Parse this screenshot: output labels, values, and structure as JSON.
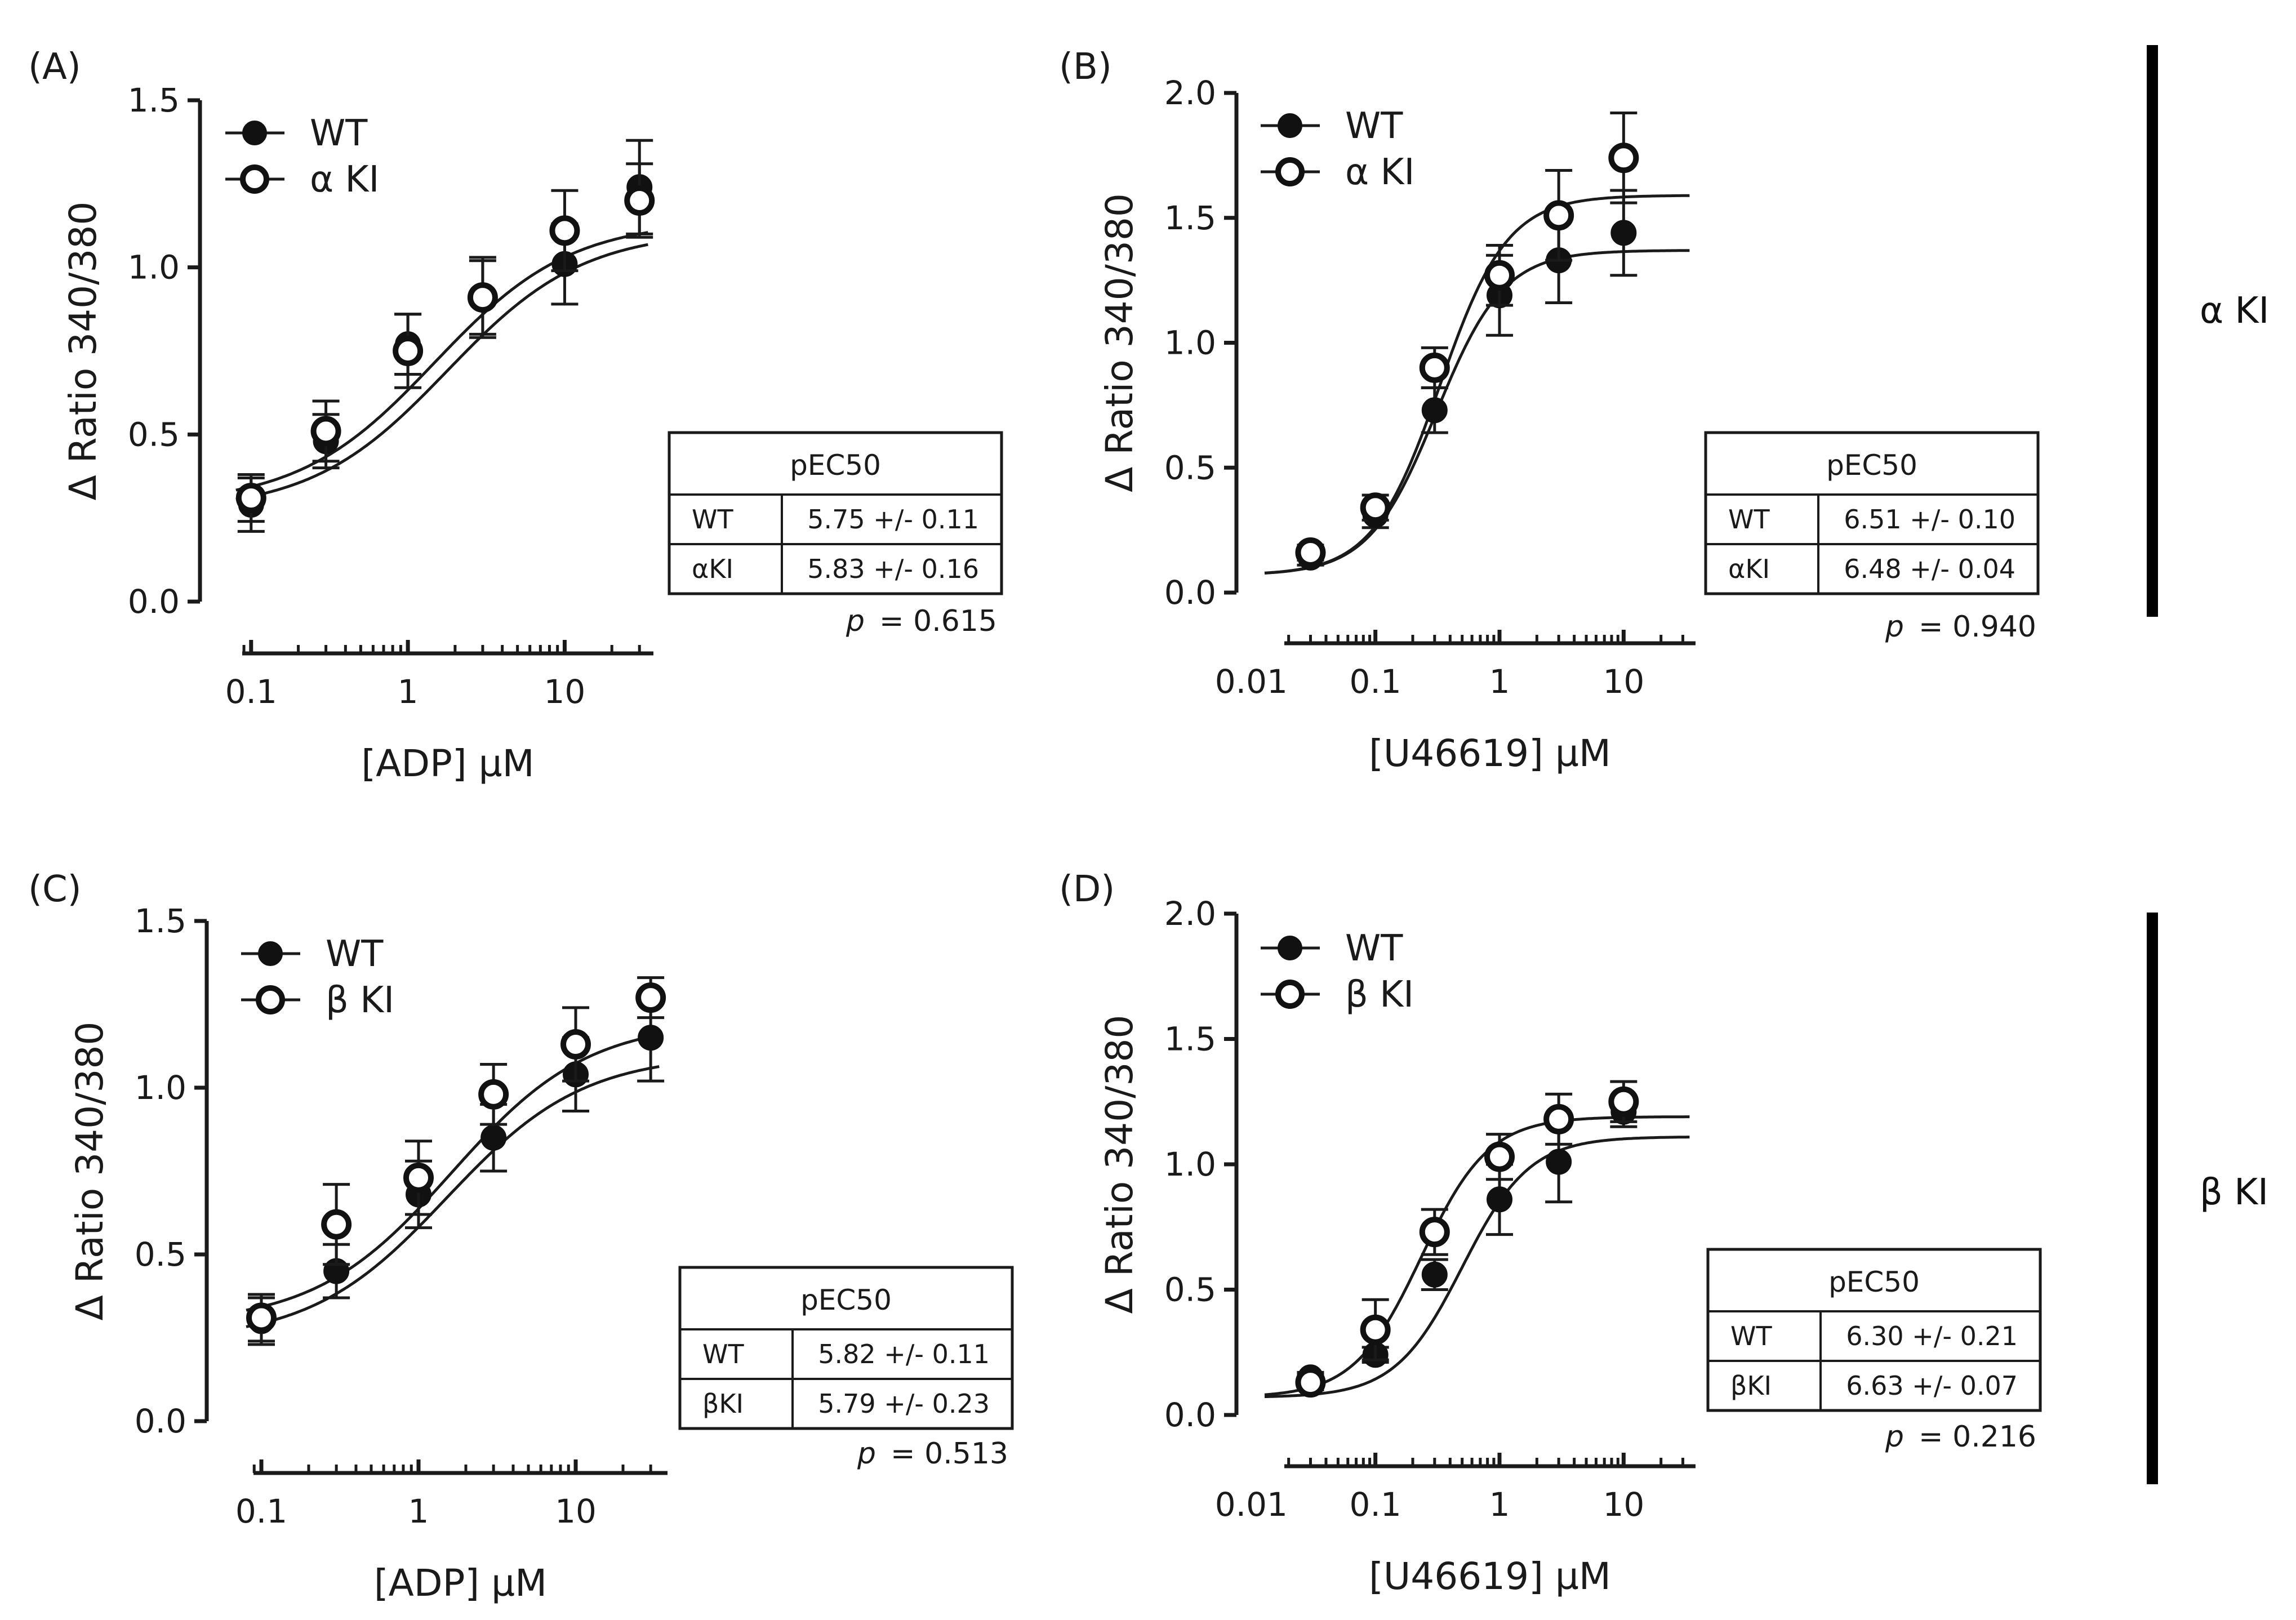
{
  "side_labels": [
    "α KI",
    "β KI"
  ],
  "chart_data": [
    {
      "type": "line",
      "panel": "(A)",
      "xscale": "log",
      "xlim": [
        0.05,
        40
      ],
      "xticks": [
        0.1,
        1,
        10
      ],
      "xtick_labels": [
        "0.1",
        "1",
        "10"
      ],
      "xlabel": "[ADP] µM",
      "ylabel": "Δ Ratio 340/380",
      "ylim": [
        0,
        1.5
      ],
      "yticks": [
        0,
        0.5,
        1,
        1.5
      ],
      "ytick_labels": [
        "0.0",
        "0.5",
        "1.0",
        "1.5"
      ],
      "legend": "top-left",
      "series": [
        {
          "name": "WT",
          "marker": "filled",
          "x": [
            0.1,
            0.3,
            1,
            3,
            10,
            30
          ],
          "y": [
            0.29,
            0.48,
            0.77,
            0.91,
            1.01,
            1.24
          ],
          "err": [
            0.08,
            0.08,
            0.09,
            0.12,
            0.12,
            0.14
          ],
          "fit": {
            "bottom": 0.27,
            "top": 1.11,
            "pec50": 5.75,
            "hill": 1
          }
        },
        {
          "name": "α KI",
          "marker": "open",
          "x": [
            0.1,
            0.3,
            1,
            3,
            10,
            30
          ],
          "y": [
            0.31,
            0.51,
            0.75,
            0.91,
            1.11,
            1.2
          ],
          "err": [
            0.07,
            0.09,
            0.11,
            0.11,
            0.12,
            0.11
          ],
          "fit": {
            "bottom": 0.29,
            "top": 1.14,
            "pec50": 5.83,
            "hill": 1
          }
        }
      ],
      "table": {
        "header": "pEC50",
        "rows": [
          [
            "WT",
            "5.75 +/- 0.11"
          ],
          [
            "αKI",
            "5.83 +/- 0.16"
          ]
        ]
      },
      "p_label": "p",
      "p_value": "= 0.615"
    },
    {
      "type": "line",
      "panel": "(B)",
      "xscale": "log",
      "xlim": [
        0.008,
        40
      ],
      "xticks": [
        0.01,
        0.1,
        1,
        10
      ],
      "xtick_labels": [
        "0.01",
        "0.1",
        "1",
        "10"
      ],
      "xlabel": "[U46619] µM",
      "ylabel": "Δ Ratio 340/380",
      "ylim": [
        0,
        2.0
      ],
      "yticks": [
        0,
        0.5,
        1,
        1.5,
        2
      ],
      "ytick_labels": [
        "0.0",
        "0.5",
        "1.0",
        "1.5",
        "2.0"
      ],
      "legend": "top-left",
      "series": [
        {
          "name": "WT",
          "marker": "filled",
          "x": [
            0.03,
            0.1,
            0.3,
            1,
            3,
            10
          ],
          "y": [
            0.14,
            0.31,
            0.73,
            1.19,
            1.33,
            1.44
          ],
          "err": [
            0.03,
            0.05,
            0.09,
            0.16,
            0.17,
            0.17
          ],
          "fit": {
            "bottom": 0.07,
            "top": 1.37,
            "pec50": 6.51,
            "hill": 1.6
          }
        },
        {
          "name": "α KI",
          "marker": "open",
          "x": [
            0.03,
            0.1,
            0.3,
            1,
            3,
            10
          ],
          "y": [
            0.16,
            0.34,
            0.9,
            1.27,
            1.51,
            1.74
          ],
          "err": [
            0.03,
            0.05,
            0.08,
            0.12,
            0.18,
            0.18
          ],
          "fit": {
            "bottom": 0.07,
            "top": 1.59,
            "pec50": 6.48,
            "hill": 1.6
          }
        }
      ],
      "table": {
        "header": "pEC50",
        "rows": [
          [
            "WT",
            "6.51 +/- 0.10"
          ],
          [
            "αKI",
            "6.48 +/- 0.04"
          ]
        ]
      },
      "p_label": "p",
      "p_value": "= 0.940"
    },
    {
      "type": "line",
      "panel": "(C)",
      "xscale": "log",
      "xlim": [
        0.05,
        40
      ],
      "xticks": [
        0.1,
        1,
        10
      ],
      "xtick_labels": [
        "0.1",
        "1",
        "10"
      ],
      "xlabel": "[ADP] µM",
      "ylabel": "Δ Ratio 340/380",
      "ylim": [
        0,
        1.5
      ],
      "yticks": [
        0,
        0.5,
        1,
        1.5
      ],
      "ytick_labels": [
        "0.0",
        "0.5",
        "1.0",
        "1.5"
      ],
      "legend": "top-left",
      "series": [
        {
          "name": "WT",
          "marker": "filled",
          "x": [
            0.1,
            0.3,
            1,
            3,
            10,
            30
          ],
          "y": [
            0.3,
            0.45,
            0.68,
            0.85,
            1.04,
            1.15
          ],
          "err": [
            0.07,
            0.08,
            0.1,
            0.1,
            0.11,
            0.13
          ],
          "fit": {
            "bottom": 0.24,
            "top": 1.1,
            "pec50": 5.82,
            "hill": 1
          }
        },
        {
          "name": "β KI",
          "marker": "open",
          "x": [
            0.1,
            0.3,
            1,
            3,
            10,
            30
          ],
          "y": [
            0.31,
            0.59,
            0.73,
            0.98,
            1.13,
            1.27
          ],
          "err": [
            0.07,
            0.12,
            0.11,
            0.09,
            0.11,
            0.06
          ],
          "fit": {
            "bottom": 0.29,
            "top": 1.2,
            "pec50": 5.79,
            "hill": 1
          }
        }
      ],
      "table": {
        "header": "pEC50",
        "rows": [
          [
            "WT",
            "5.82 +/- 0.11"
          ],
          [
            "βKI",
            "5.79 +/- 0.23"
          ]
        ]
      },
      "p_label": "p",
      "p_value": "= 0.513"
    },
    {
      "type": "line",
      "panel": "(D)",
      "xscale": "log",
      "xlim": [
        0.008,
        40
      ],
      "xticks": [
        0.01,
        0.1,
        1,
        10
      ],
      "xtick_labels": [
        "0.01",
        "0.1",
        "1",
        "10"
      ],
      "xlabel": "[U46619] µM",
      "ylabel": "Δ Ratio 340/380",
      "ylim": [
        0,
        2.0
      ],
      "yticks": [
        0,
        0.5,
        1,
        1.5,
        2
      ],
      "ytick_labels": [
        "0.0",
        "0.5",
        "1.0",
        "1.5",
        "2.0"
      ],
      "legend": "top-left",
      "series": [
        {
          "name": "WT",
          "marker": "filled",
          "x": [
            0.03,
            0.1,
            0.3,
            1,
            3,
            10
          ],
          "y": [
            0.15,
            0.24,
            0.56,
            0.86,
            1.01,
            1.21
          ],
          "err": [
            0.02,
            0.03,
            0.06,
            0.14,
            0.16,
            0.06
          ],
          "fit": {
            "bottom": 0.07,
            "top": 1.11,
            "pec50": 6.3,
            "hill": 1.6
          }
        },
        {
          "name": "β KI",
          "marker": "open",
          "x": [
            0.03,
            0.1,
            0.3,
            1,
            3,
            10
          ],
          "y": [
            0.13,
            0.34,
            0.73,
            1.03,
            1.18,
            1.25
          ],
          "err": [
            0.03,
            0.12,
            0.09,
            0.09,
            0.1,
            0.08
          ],
          "fit": {
            "bottom": 0.07,
            "top": 1.19,
            "pec50": 6.63,
            "hill": 1.6
          }
        }
      ],
      "table": {
        "header": "pEC50",
        "rows": [
          [
            "WT",
            "6.30 +/- 0.21"
          ],
          [
            "βKI",
            "6.63 +/- 0.07"
          ]
        ]
      },
      "p_label": "p",
      "p_value": "= 0.216"
    }
  ]
}
